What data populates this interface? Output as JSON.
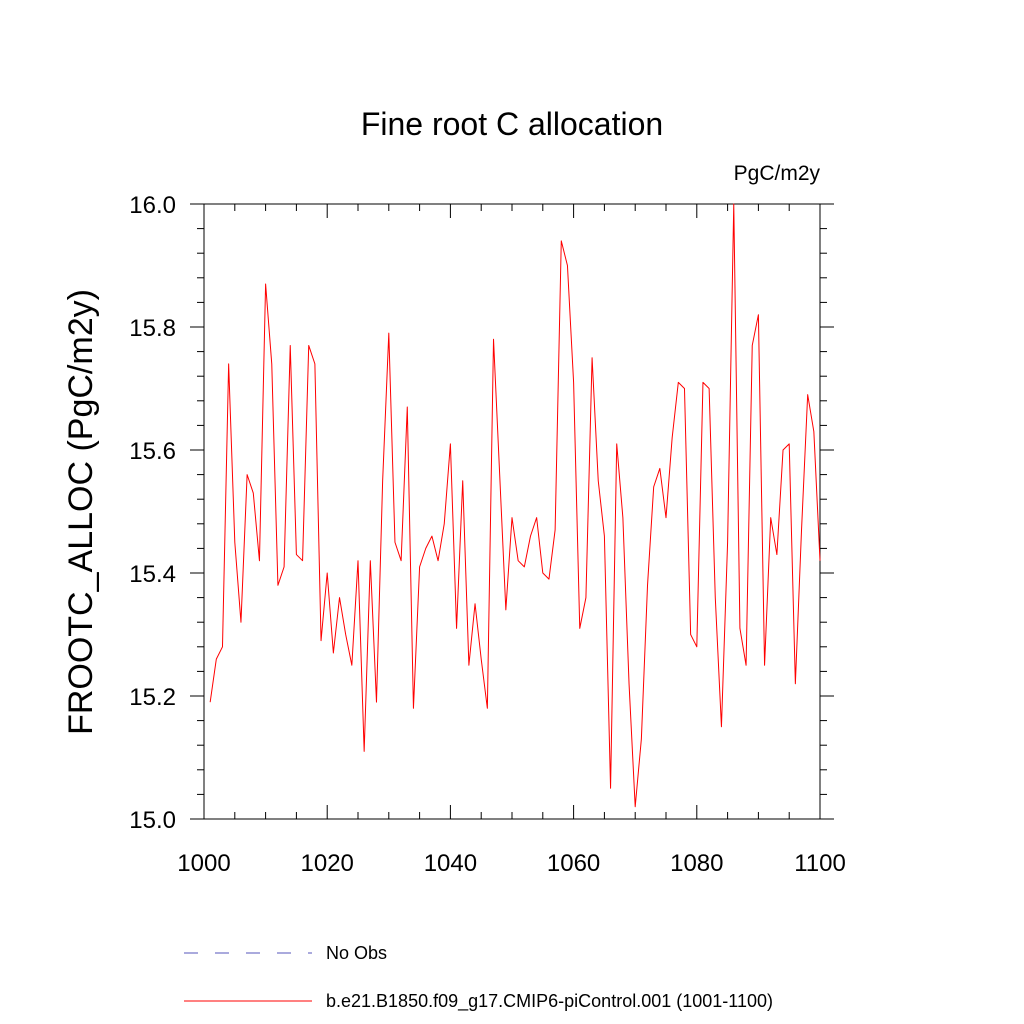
{
  "chart_data": {
    "type": "line",
    "title": "Fine root C allocation",
    "units_label": "PgC/m2y",
    "ylabel": "FROOTC_ALLOC  (PgC/m2y)",
    "xlabel": "",
    "xlim": [
      1000,
      1100
    ],
    "ylim": [
      15.0,
      16.0
    ],
    "x_ticks": [
      1000,
      1020,
      1040,
      1060,
      1080,
      1100
    ],
    "x_tick_labels": [
      "1000",
      "1020",
      "1040",
      "1060",
      "1080",
      "1100"
    ],
    "y_ticks": [
      15.0,
      15.2,
      15.4,
      15.6,
      15.8,
      16.0
    ],
    "y_tick_labels": [
      "15.0",
      "15.2",
      "15.4",
      "15.6",
      "15.8",
      "16.0"
    ],
    "grid": false,
    "legend_position": "bottom",
    "series": [
      {
        "name": "b.e21.B1850.f09_g17.CMIP6-piControl.001 (1001-1100)",
        "color": "#ff0000",
        "style": "solid",
        "x": [
          1001,
          1002,
          1003,
          1004,
          1005,
          1006,
          1007,
          1008,
          1009,
          1010,
          1011,
          1012,
          1013,
          1014,
          1015,
          1016,
          1017,
          1018,
          1019,
          1020,
          1021,
          1022,
          1023,
          1024,
          1025,
          1026,
          1027,
          1028,
          1029,
          1030,
          1031,
          1032,
          1033,
          1034,
          1035,
          1036,
          1037,
          1038,
          1039,
          1040,
          1041,
          1042,
          1043,
          1044,
          1045,
          1046,
          1047,
          1048,
          1049,
          1050,
          1051,
          1052,
          1053,
          1054,
          1055,
          1056,
          1057,
          1058,
          1059,
          1060,
          1061,
          1062,
          1063,
          1064,
          1065,
          1066,
          1067,
          1068,
          1069,
          1070,
          1071,
          1072,
          1073,
          1074,
          1075,
          1076,
          1077,
          1078,
          1079,
          1080,
          1081,
          1082,
          1083,
          1084,
          1085,
          1086,
          1087,
          1088,
          1089,
          1090,
          1091,
          1092,
          1093,
          1094,
          1095,
          1096,
          1097,
          1098,
          1099,
          1100
        ],
        "values": [
          15.19,
          15.26,
          15.28,
          15.74,
          15.45,
          15.32,
          15.56,
          15.53,
          15.42,
          15.87,
          15.74,
          15.38,
          15.41,
          15.77,
          15.43,
          15.42,
          15.77,
          15.74,
          15.29,
          15.4,
          15.27,
          15.36,
          15.3,
          15.25,
          15.42,
          15.11,
          15.42,
          15.19,
          15.55,
          15.79,
          15.45,
          15.42,
          15.67,
          15.18,
          15.41,
          15.44,
          15.46,
          15.42,
          15.48,
          15.61,
          15.31,
          15.55,
          15.25,
          15.35,
          15.26,
          15.18,
          15.78,
          15.56,
          15.34,
          15.49,
          15.42,
          15.41,
          15.46,
          15.49,
          15.4,
          15.39,
          15.47,
          15.94,
          15.9,
          15.71,
          15.31,
          15.36,
          15.75,
          15.55,
          15.46,
          15.05,
          15.61,
          15.49,
          15.22,
          15.02,
          15.13,
          15.38,
          15.54,
          15.57,
          15.49,
          15.62,
          15.71,
          15.7,
          15.3,
          15.28,
          15.71,
          15.7,
          15.36,
          15.15,
          15.45,
          16.0,
          15.31,
          15.25,
          15.77,
          15.82,
          15.25,
          15.49,
          15.43,
          15.6,
          15.61,
          15.22,
          15.47,
          15.69,
          15.63,
          15.42
        ]
      }
    ],
    "legend": [
      {
        "label": "No Obs",
        "color": "#5555bb",
        "style": "dashed"
      },
      {
        "label": "b.e21.B1850.f09_g17.CMIP6-piControl.001 (1001-1100)",
        "color": "#ff0000",
        "style": "solid"
      }
    ]
  }
}
